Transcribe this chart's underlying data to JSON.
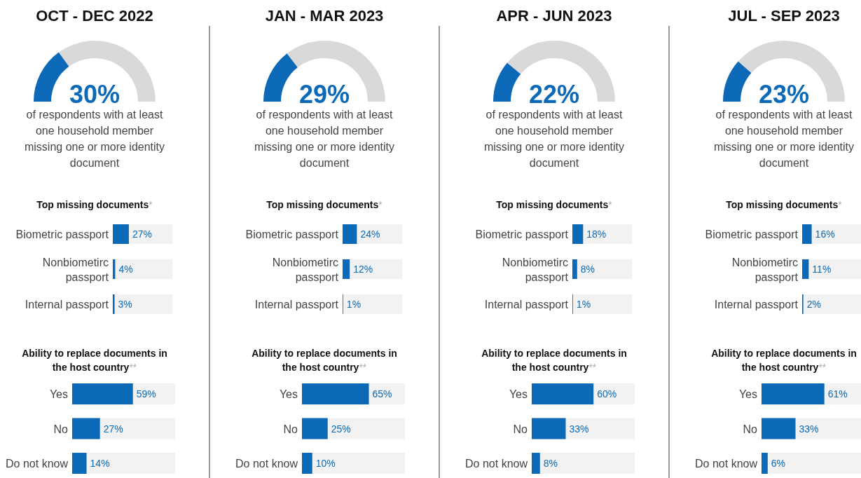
{
  "chart_data": [
    {
      "type": "donut",
      "title": "OCT - DEC 2022",
      "subtitle": "of respondents with at least one household member missing one or more identity document",
      "categories": [
        null,
        null
      ],
      "values": [
        30,
        70
      ],
      "colors": [
        "#0b69b7",
        "#d9d9d9"
      ],
      "annotations": [
        "30%"
      ]
    },
    {
      "type": "bar",
      "orientation": "horizontal",
      "title": "Top missing documents*",
      "categories": [
        "Biometric passport",
        "Nonbiometirc passport",
        "Internal passport"
      ],
      "values": [
        27,
        4,
        3
      ],
      "value_labels": [
        "27%",
        "4%",
        "3%"
      ],
      "color": "#0b69b7",
      "xlim": [
        0,
        100
      ],
      "tick_labels": "y"
    },
    {
      "type": "bar",
      "orientation": "horizontal",
      "title": "Ability to replace documents in the host country**",
      "categories": [
        "Yes",
        "No",
        "Do not know"
      ],
      "values": [
        59,
        27,
        14
      ],
      "value_labels": [
        "59%",
        "27%",
        "14%"
      ],
      "color": "#0b69b7",
      "xlim": [
        0,
        100
      ],
      "tick_labels": "y"
    },
    {
      "type": "donut",
      "title": "JAN - MAR 2023",
      "subtitle": "of respondents with at least one household member missing one or more identity document",
      "categories": [
        null,
        null
      ],
      "values": [
        29,
        71
      ],
      "colors": [
        "#0b69b7",
        "#d9d9d9"
      ],
      "annotations": [
        "29%"
      ]
    },
    {
      "type": "bar",
      "orientation": "horizontal",
      "title": "Top missing documents*",
      "categories": [
        "Biometric passport",
        "Nonbiometirc passport",
        "Internal passport"
      ],
      "values": [
        24,
        12,
        1
      ],
      "value_labels": [
        "24%",
        "12%",
        "1%"
      ],
      "color": "#0b69b7",
      "xlim": [
        0,
        100
      ],
      "tick_labels": "y"
    },
    {
      "type": "bar",
      "orientation": "horizontal",
      "title": "Ability to replace documents in the host country**",
      "categories": [
        "Yes",
        "No",
        "Do not know"
      ],
      "values": [
        65,
        25,
        10
      ],
      "value_labels": [
        "65%",
        "25%",
        "10%"
      ],
      "color": "#0b69b7",
      "xlim": [
        0,
        100
      ],
      "tick_labels": "y"
    },
    {
      "type": "donut",
      "title": "APR - JUN 2023",
      "subtitle": "of respondents with at least one household member missing one or more identity document",
      "categories": [
        null,
        null
      ],
      "values": [
        22,
        78
      ],
      "colors": [
        "#0b69b7",
        "#d9d9d9"
      ],
      "annotations": [
        "22%"
      ]
    },
    {
      "type": "bar",
      "orientation": "horizontal",
      "title": "Top missing documents*",
      "categories": [
        "Biometric passport",
        "Nonbiometirc passport",
        "Internal passport"
      ],
      "values": [
        18,
        8,
        1
      ],
      "value_labels": [
        "18%",
        "8%",
        "1%"
      ],
      "color": "#0b69b7",
      "xlim": [
        0,
        100
      ],
      "tick_labels": "y"
    },
    {
      "type": "bar",
      "orientation": "horizontal",
      "title": "Ability to replace documents in the host country**",
      "categories": [
        "Yes",
        "No",
        "Do not know"
      ],
      "values": [
        60,
        33,
        8
      ],
      "value_labels": [
        "60%",
        "33%",
        "8%"
      ],
      "color": "#0b69b7",
      "xlim": [
        0,
        100
      ],
      "tick_labels": "y"
    },
    {
      "type": "donut",
      "title": "JUL - SEP 2023",
      "subtitle": "of respondents with at least one household member missing one or more identity document",
      "categories": [
        null,
        null
      ],
      "values": [
        23,
        77
      ],
      "colors": [
        "#0b69b7",
        "#d9d9d9"
      ],
      "annotations": [
        "23%"
      ]
    },
    {
      "type": "bar",
      "orientation": "horizontal",
      "title": "Top missing documents*",
      "categories": [
        "Biometric passport",
        "Nonbiometirc passport",
        "Internal passport"
      ],
      "values": [
        16,
        11,
        2
      ],
      "value_labels": [
        "16%",
        "11%",
        "2%"
      ],
      "color": "#0b69b7",
      "xlim": [
        0,
        100
      ],
      "tick_labels": "y"
    },
    {
      "type": "bar",
      "orientation": "horizontal",
      "title": "Ability to replace documents in the host country**",
      "categories": [
        "Yes",
        "No",
        "Do not know"
      ],
      "values": [
        61,
        33,
        6
      ],
      "value_labels": [
        "61%",
        "33%",
        "6%"
      ],
      "color": "#0b69b7",
      "xlim": [
        0,
        100
      ],
      "tick_labels": "y"
    }
  ]
}
